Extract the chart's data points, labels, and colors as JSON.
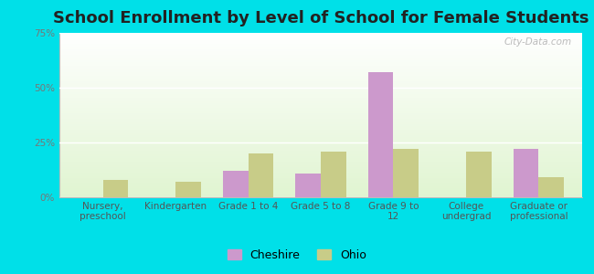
{
  "title": "School Enrollment by Level of School for Female Students",
  "categories": [
    "Nursery,\npreschool",
    "Kindergarten",
    "Grade 1 to 4",
    "Grade 5 to 8",
    "Grade 9 to\n12",
    "College\nundergrad",
    "Graduate or\nprofessional"
  ],
  "cheshire": [
    0,
    0,
    12,
    11,
    57,
    0,
    22
  ],
  "ohio": [
    8,
    7,
    20,
    21,
    22,
    21,
    9
  ],
  "cheshire_color": "#cc99cc",
  "ohio_color": "#c8cc88",
  "background_color": "#00e0e8",
  "ylim": [
    0,
    75
  ],
  "yticks": [
    0,
    25,
    50,
    75
  ],
  "ytick_labels": [
    "0%",
    "25%",
    "50%",
    "75%"
  ],
  "bar_width": 0.35,
  "title_fontsize": 13,
  "tick_fontsize": 7.5,
  "legend_fontsize": 9,
  "watermark": "City-Data.com"
}
